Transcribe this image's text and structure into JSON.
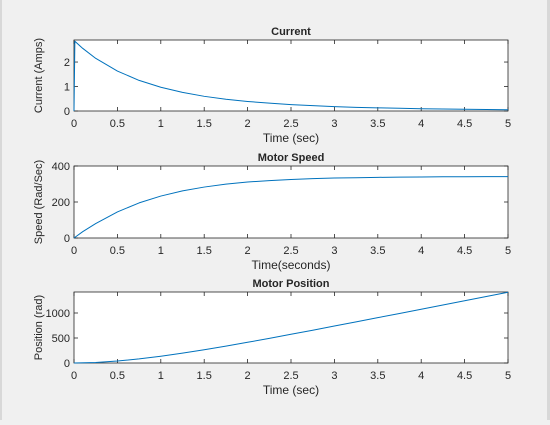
{
  "chart_data": [
    {
      "type": "line",
      "title": "Current",
      "xlabel": "Time (sec)",
      "ylabel": "Current (Amps)",
      "xlim": [
        0,
        5
      ],
      "ylim": [
        0,
        2.9
      ],
      "xticks": [
        0,
        0.5,
        1,
        1.5,
        2,
        2.5,
        3,
        3.5,
        4,
        4.5,
        5
      ],
      "xtick_labels": [
        "0",
        "0.5",
        "1",
        "1.5",
        "2",
        "2.5",
        "3",
        "3.5",
        "4",
        "4.5",
        "5"
      ],
      "yticks": [
        0,
        1,
        2
      ],
      "ytick_labels": [
        "0",
        "1",
        "2"
      ],
      "grid": false,
      "line_color": "#0072bd",
      "series": [
        {
          "x": [
            0,
            0.01,
            0.1,
            0.25,
            0.5,
            0.75,
            1,
            1.25,
            1.5,
            1.75,
            2,
            2.25,
            2.5,
            2.75,
            3,
            3.25,
            3.5,
            3.75,
            4,
            4.25,
            4.5,
            4.75,
            5
          ],
          "values": [
            0,
            2.85,
            2.56,
            2.15,
            1.63,
            1.25,
            0.97,
            0.76,
            0.6,
            0.48,
            0.39,
            0.32,
            0.26,
            0.22,
            0.18,
            0.15,
            0.13,
            0.11,
            0.09,
            0.08,
            0.07,
            0.06,
            0.05
          ]
        }
      ]
    },
    {
      "type": "line",
      "title": "Motor Speed",
      "xlabel": "Time(seconds)",
      "ylabel": "Speed (Rad/Sec)",
      "xlim": [
        0,
        5
      ],
      "ylim": [
        0,
        400
      ],
      "xticks": [
        0,
        0.5,
        1,
        1.5,
        2,
        2.5,
        3,
        3.5,
        4,
        4.5,
        5
      ],
      "xtick_labels": [
        "0",
        "0.5",
        "1",
        "1.5",
        "2",
        "2.5",
        "3",
        "3.5",
        "4",
        "4.5",
        "5"
      ],
      "yticks": [
        0,
        200,
        400
      ],
      "ytick_labels": [
        "0",
        "200",
        "400"
      ],
      "grid": false,
      "line_color": "#0072bd",
      "series": [
        {
          "x": [
            0,
            0.1,
            0.25,
            0.5,
            0.75,
            1,
            1.25,
            1.5,
            1.75,
            2,
            2.25,
            2.5,
            2.75,
            3,
            3.25,
            3.5,
            3.75,
            4,
            4.25,
            4.5,
            4.75,
            5
          ],
          "values": [
            0,
            35,
            80,
            145,
            195,
            233,
            262,
            283,
            299,
            311,
            319,
            325,
            330,
            333,
            335,
            337,
            338,
            339,
            340,
            340,
            341,
            341
          ]
        }
      ]
    },
    {
      "type": "line",
      "title": "Motor Position",
      "xlabel": "Time (sec)",
      "ylabel": "Position (rad)",
      "xlim": [
        0,
        5
      ],
      "ylim": [
        0,
        1420
      ],
      "xticks": [
        0,
        0.5,
        1,
        1.5,
        2,
        2.5,
        3,
        3.5,
        4,
        4.5,
        5
      ],
      "xtick_labels": [
        "0",
        "0.5",
        "1",
        "1.5",
        "2",
        "2.5",
        "3",
        "3.5",
        "4",
        "4.5",
        "5"
      ],
      "yticks": [
        0,
        500,
        1000
      ],
      "ytick_labels": [
        "0",
        "500",
        "1000"
      ],
      "grid": false,
      "line_color": "#0072bd",
      "series": [
        {
          "x": [
            0,
            0.25,
            0.5,
            0.75,
            1,
            1.25,
            1.5,
            1.75,
            2,
            2.25,
            2.5,
            2.75,
            3,
            3.25,
            3.5,
            3.75,
            4,
            4.25,
            4.5,
            4.75,
            5
          ],
          "values": [
            0,
            11,
            39,
            82,
            135,
            197,
            265,
            338,
            414,
            493,
            574,
            656,
            739,
            823,
            907,
            991,
            1076,
            1161,
            1246,
            1331,
            1416
          ]
        }
      ]
    }
  ]
}
